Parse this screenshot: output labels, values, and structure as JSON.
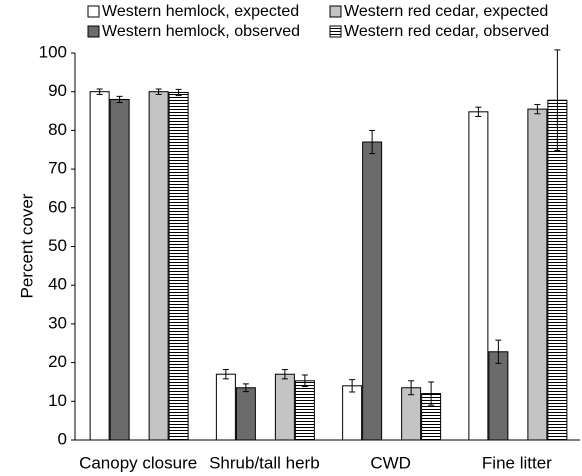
{
  "chart_data": {
    "type": "bar",
    "y_label": "Percent cover",
    "categories": [
      "Canopy closure",
      "Shrub/tall herb",
      "CWD",
      "Fine litter"
    ],
    "series": [
      {
        "name": "Western hemlock, expected",
        "color": "#ffffff",
        "values": [
          90,
          17,
          14,
          84.8
        ],
        "errors": [
          0.7,
          1.2,
          1.6,
          1.2
        ]
      },
      {
        "name": "Western hemlock, observed",
        "color": "#6b6b6b",
        "values": [
          88,
          13.5,
          77,
          22.8
        ],
        "errors": [
          0.8,
          1,
          3,
          3
        ]
      },
      {
        "name": "Western red cedar, expected",
        "color": "#c4c4c4",
        "values": [
          90,
          17,
          13.5,
          85.5
        ],
        "errors": [
          0.7,
          1.2,
          1.8,
          1.2
        ]
      },
      {
        "name": "Western red cedar, observed",
        "color": "#000000",
        "hatch": "horizontal",
        "values": [
          89.8,
          15.3,
          12,
          87.8
        ],
        "errors": [
          0.8,
          1.5,
          3,
          13
        ]
      }
    ],
    "ylim": [
      0,
      100
    ],
    "yticks": [
      0,
      10,
      20,
      30,
      40,
      50,
      60,
      70,
      80,
      90,
      100
    ]
  }
}
